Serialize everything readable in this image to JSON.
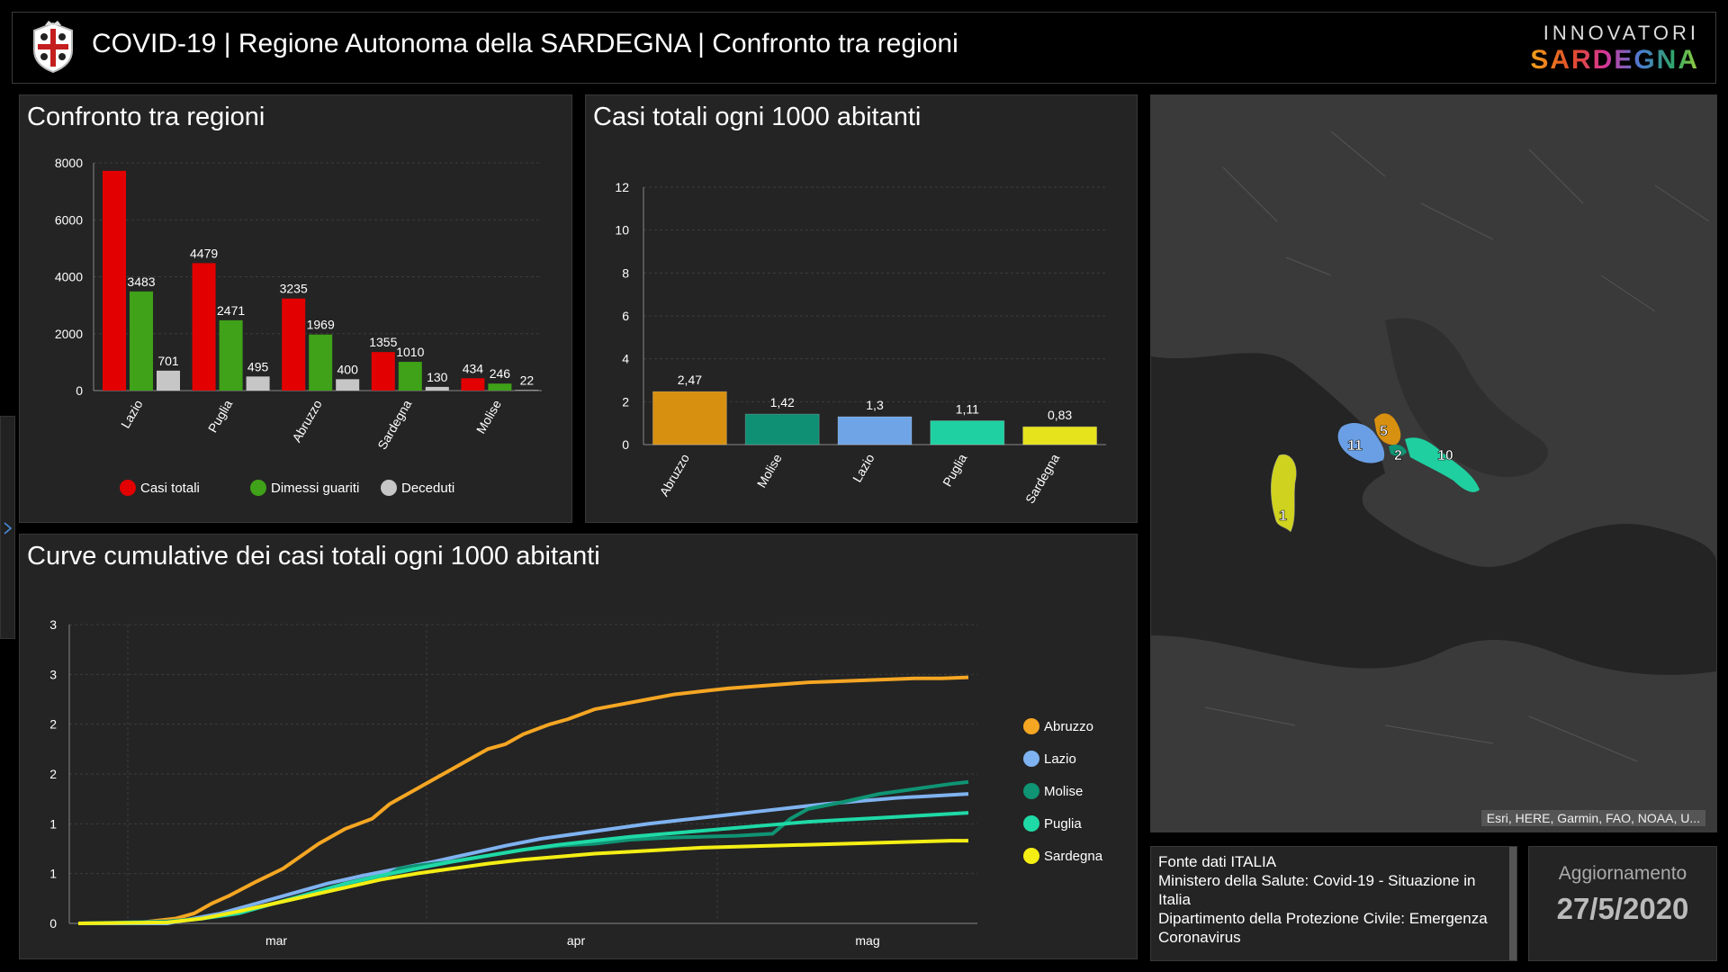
{
  "header": {
    "title": "COVID-19 | Regione Autonoma della SARDEGNA | Confronto tra regioni",
    "brand_top": "INNOVATORI",
    "brand_bottom": "SARDEGNA"
  },
  "charts": {
    "compare": {
      "title": "Confronto tra regioni",
      "type": "bar",
      "categories": [
        "Lazio",
        "Puglia",
        "Abruzzo",
        "Sardegna",
        "Molise"
      ],
      "ylim": [
        0,
        8000
      ],
      "yticks": [
        "0",
        "2000",
        "4000",
        "6000",
        "8000"
      ],
      "series": [
        {
          "name": "Casi totali",
          "color": "#e20000",
          "values": [
            7720,
            4479,
            3235,
            1355,
            434
          ],
          "labels": [
            "",
            "4479",
            "3235",
            "1355",
            "434"
          ]
        },
        {
          "name": "Dimessi guariti",
          "color": "#3fa218",
          "values": [
            3483,
            2471,
            1969,
            1010,
            246
          ],
          "labels": [
            "3483",
            "2471",
            "1969",
            "1010",
            "246"
          ]
        },
        {
          "name": "Deceduti",
          "color": "#c6c6c6",
          "values": [
            701,
            495,
            400,
            130,
            22
          ],
          "labels": [
            "701",
            "495",
            "400",
            "130",
            "22"
          ]
        }
      ]
    },
    "per1000": {
      "title": "Casi totali ogni 1000 abitanti",
      "type": "bar",
      "categories": [
        "Abruzzo",
        "Molise",
        "Lazio",
        "Puglia",
        "Sardegna"
      ],
      "values": [
        2.47,
        1.42,
        1.3,
        1.11,
        0.83
      ],
      "labels": [
        "2,47",
        "1,42",
        "1,3",
        "1,11",
        "0,83"
      ],
      "colors": [
        "#d89010",
        "#0f8f74",
        "#6fa4e6",
        "#1fd1a2",
        "#e6e21c"
      ],
      "ylim": [
        0,
        12
      ],
      "yticks": [
        "0",
        "2",
        "4",
        "6",
        "8",
        "10",
        "12"
      ]
    },
    "curves": {
      "title": "Curve cumulative dei casi totali ogni 1000 abitanti",
      "type": "line",
      "x_labels": [
        "mar",
        "apr",
        "mag"
      ],
      "yticks": [
        "0",
        "1",
        "1",
        "2",
        "2",
        "3",
        "3"
      ],
      "ylim": [
        0,
        3
      ],
      "series": [
        {
          "name": "Abruzzo",
          "color": "#f5a623",
          "x": [
            0,
            6,
            9,
            11,
            13,
            15,
            17,
            20,
            23,
            27,
            30,
            33,
            35,
            38,
            40,
            42,
            44,
            46,
            48,
            50,
            53,
            55,
            58,
            61,
            64,
            67,
            70,
            73,
            76,
            79,
            82,
            85,
            88,
            91,
            94,
            97,
            100
          ],
          "y": [
            0,
            0,
            0.03,
            0.05,
            0.1,
            0.2,
            0.28,
            0.42,
            0.55,
            0.8,
            0.95,
            1.05,
            1.2,
            1.35,
            1.45,
            1.55,
            1.65,
            1.75,
            1.8,
            1.9,
            2.0,
            2.05,
            2.15,
            2.2,
            2.25,
            2.3,
            2.33,
            2.36,
            2.38,
            2.4,
            2.42,
            2.43,
            2.44,
            2.45,
            2.46,
            2.46,
            2.47
          ]
        },
        {
          "name": "Lazio",
          "color": "#7fb2f0",
          "x": [
            0,
            10,
            13,
            16,
            20,
            24,
            28,
            32,
            36,
            40,
            44,
            48,
            52,
            56,
            60,
            64,
            68,
            72,
            76,
            80,
            84,
            88,
            92,
            96,
            100
          ],
          "y": [
            0,
            0,
            0.05,
            0.1,
            0.2,
            0.3,
            0.4,
            0.48,
            0.55,
            0.62,
            0.7,
            0.78,
            0.85,
            0.9,
            0.95,
            1.0,
            1.04,
            1.08,
            1.12,
            1.16,
            1.2,
            1.23,
            1.26,
            1.28,
            1.3
          ]
        },
        {
          "name": "Molise",
          "color": "#0f9474",
          "x": [
            0,
            10,
            14,
            18,
            22,
            26,
            30,
            34,
            36,
            38,
            42,
            46,
            50,
            54,
            58,
            62,
            66,
            70,
            74,
            78,
            80,
            82,
            86,
            90,
            94,
            98,
            100
          ],
          "y": [
            0,
            0.02,
            0.05,
            0.12,
            0.2,
            0.28,
            0.38,
            0.45,
            0.55,
            0.58,
            0.62,
            0.68,
            0.74,
            0.78,
            0.8,
            0.84,
            0.86,
            0.87,
            0.88,
            0.9,
            1.05,
            1.15,
            1.22,
            1.3,
            1.35,
            1.4,
            1.42
          ]
        },
        {
          "name": "Puglia",
          "color": "#1fd9a6",
          "x": [
            0,
            10,
            14,
            18,
            22,
            26,
            30,
            34,
            38,
            42,
            46,
            50,
            54,
            58,
            62,
            66,
            70,
            74,
            78,
            82,
            86,
            90,
            94,
            98,
            100
          ],
          "y": [
            0,
            0.01,
            0.05,
            0.1,
            0.2,
            0.3,
            0.4,
            0.48,
            0.55,
            0.62,
            0.68,
            0.74,
            0.79,
            0.83,
            0.87,
            0.9,
            0.93,
            0.96,
            0.99,
            1.02,
            1.04,
            1.06,
            1.08,
            1.1,
            1.11
          ]
        },
        {
          "name": "Sardegna",
          "color": "#f4ee14",
          "x": [
            0,
            10,
            14,
            18,
            22,
            26,
            30,
            34,
            38,
            42,
            46,
            50,
            54,
            58,
            62,
            66,
            70,
            74,
            78,
            82,
            86,
            90,
            94,
            98,
            100
          ],
          "y": [
            0,
            0.01,
            0.05,
            0.12,
            0.2,
            0.28,
            0.36,
            0.44,
            0.5,
            0.55,
            0.6,
            0.64,
            0.67,
            0.7,
            0.72,
            0.74,
            0.76,
            0.77,
            0.78,
            0.79,
            0.8,
            0.81,
            0.82,
            0.83,
            0.83
          ]
        }
      ]
    }
  },
  "map": {
    "labels": [
      "1",
      "11",
      "5",
      "2",
      "10"
    ],
    "attribution": "Esri, HERE, Garmin, FAO, NOAA, U..."
  },
  "info": {
    "line1": "Fonte dati ITALIA",
    "line2": "Ministero della Salute: Covid-19 - Situazione in Italia",
    "line3": "Dipartimento della Protezione Civile: Emergenza Coronavirus"
  },
  "update": {
    "label": "Aggiornamento",
    "date": "27/5/2020"
  }
}
